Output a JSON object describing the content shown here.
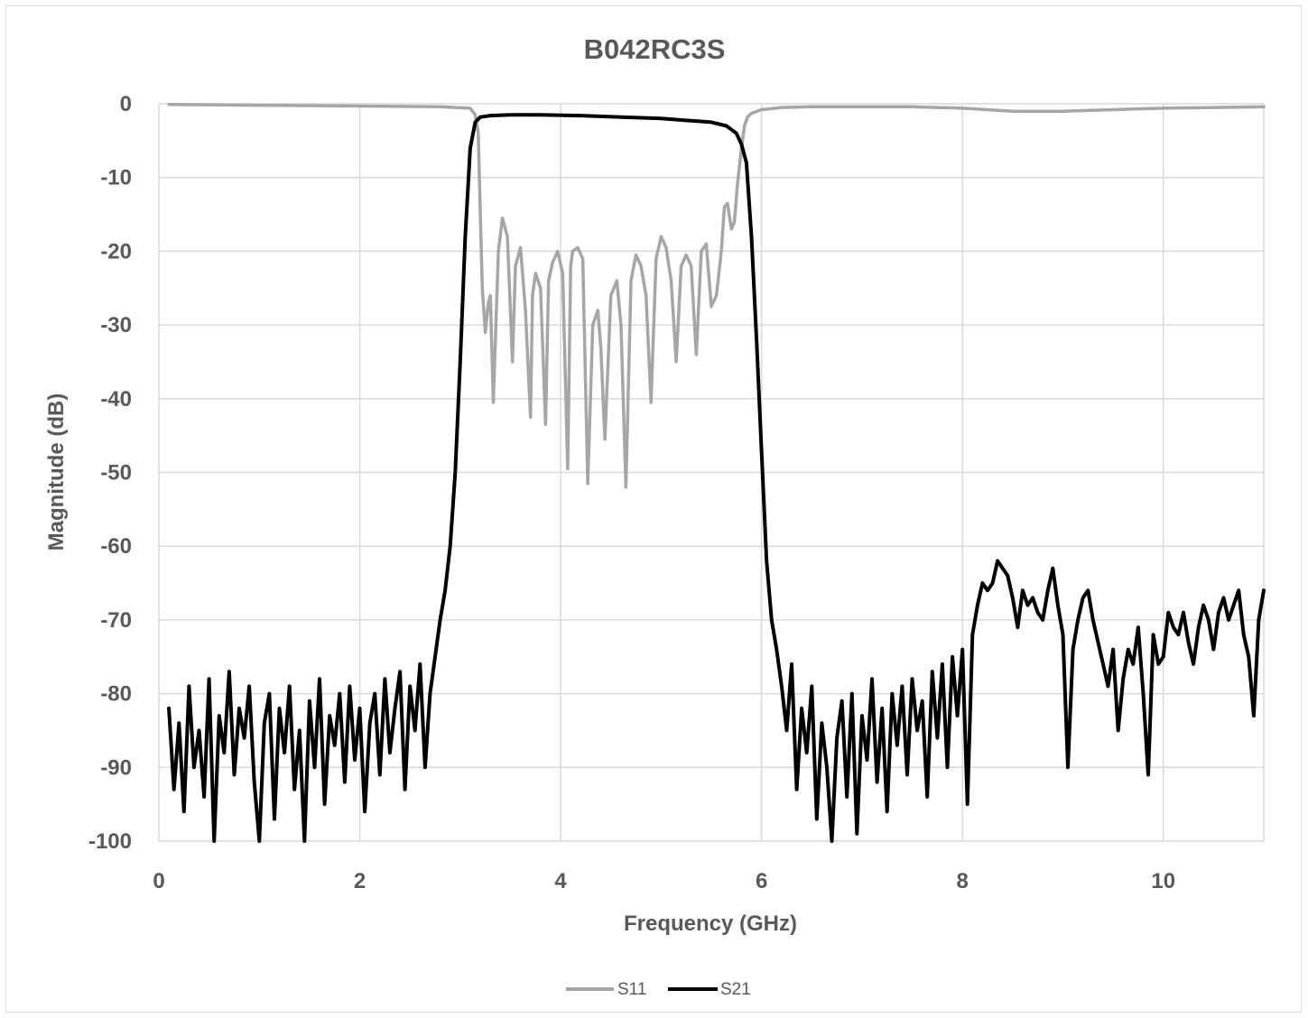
{
  "chart_data": {
    "type": "line",
    "title": "B042RC3S",
    "xlabel": "Frequency (GHz)",
    "ylabel": "Magnitude (dB)",
    "xlim": [
      0,
      11
    ],
    "ylim": [
      -100,
      0
    ],
    "xticks": [
      0,
      2,
      4,
      6,
      8,
      10
    ],
    "yticks": [
      0,
      -10,
      -20,
      -30,
      -40,
      -50,
      -60,
      -70,
      -80,
      -90,
      -100
    ],
    "grid": true,
    "legend": "bottom",
    "series": [
      {
        "name": "S11",
        "color": "#a6a6a6",
        "x": [
          0.1,
          1.0,
          2.0,
          2.8,
          3.1,
          3.15,
          3.18,
          3.2,
          3.22,
          3.25,
          3.28,
          3.3,
          3.33,
          3.38,
          3.42,
          3.47,
          3.52,
          3.55,
          3.6,
          3.65,
          3.7,
          3.72,
          3.75,
          3.8,
          3.85,
          3.88,
          3.92,
          3.97,
          4.02,
          4.07,
          4.1,
          4.12,
          4.17,
          4.22,
          4.27,
          4.32,
          4.37,
          4.4,
          4.44,
          4.5,
          4.56,
          4.6,
          4.65,
          4.7,
          4.75,
          4.8,
          4.85,
          4.9,
          4.95,
          5.0,
          5.05,
          5.1,
          5.15,
          5.2,
          5.25,
          5.3,
          5.35,
          5.4,
          5.45,
          5.5,
          5.55,
          5.6,
          5.63,
          5.66,
          5.7,
          5.73,
          5.76,
          5.8,
          5.83,
          5.86,
          5.9,
          6.0,
          6.2,
          6.5,
          7.0,
          7.5,
          8.0,
          8.5,
          9.0,
          9.5,
          10.0,
          10.5,
          11.0
        ],
        "y": [
          -0.1,
          -0.2,
          -0.3,
          -0.4,
          -0.6,
          -1.5,
          -4,
          -15,
          -25,
          -31,
          -27,
          -26,
          -40.5,
          -20,
          -15.5,
          -18,
          -35,
          -22,
          -19.5,
          -28,
          -42.5,
          -26,
          -23,
          -25,
          -43.5,
          -24,
          -21.5,
          -20,
          -23,
          -49.5,
          -22,
          -20,
          -19.5,
          -21,
          -51.5,
          -30,
          -28,
          -33,
          -45.5,
          -26,
          -24,
          -30,
          -52,
          -24,
          -20.5,
          -22,
          -26,
          -40.5,
          -21,
          -18,
          -19.5,
          -24,
          -35,
          -22,
          -20.5,
          -22,
          -34,
          -20,
          -19,
          -27.5,
          -26,
          -20,
          -14,
          -13.5,
          -17,
          -16,
          -11,
          -6,
          -3,
          -1.8,
          -1.3,
          -0.8,
          -0.5,
          -0.4,
          -0.4,
          -0.4,
          -0.6,
          -1.0,
          -1.0,
          -0.8,
          -0.6,
          -0.5,
          -0.4
        ]
      },
      {
        "name": "S21",
        "color": "#000000",
        "x": [
          0.1,
          0.15,
          0.2,
          0.25,
          0.3,
          0.35,
          0.4,
          0.45,
          0.5,
          0.55,
          0.6,
          0.65,
          0.7,
          0.75,
          0.8,
          0.85,
          0.9,
          0.95,
          1.0,
          1.05,
          1.1,
          1.15,
          1.2,
          1.25,
          1.3,
          1.35,
          1.4,
          1.45,
          1.5,
          1.55,
          1.6,
          1.65,
          1.7,
          1.75,
          1.8,
          1.85,
          1.9,
          1.95,
          2.0,
          2.05,
          2.1,
          2.15,
          2.2,
          2.25,
          2.3,
          2.35,
          2.4,
          2.45,
          2.5,
          2.55,
          2.6,
          2.65,
          2.7,
          2.75,
          2.8,
          2.85,
          2.9,
          2.95,
          3.0,
          3.05,
          3.1,
          3.15,
          3.2,
          3.3,
          3.5,
          3.8,
          4.2,
          4.6,
          5.0,
          5.3,
          5.5,
          5.65,
          5.75,
          5.8,
          5.85,
          5.9,
          5.95,
          6.0,
          6.05,
          6.1,
          6.15,
          6.2,
          6.25,
          6.3,
          6.35,
          6.4,
          6.45,
          6.5,
          6.55,
          6.6,
          6.65,
          6.7,
          6.75,
          6.8,
          6.85,
          6.9,
          6.95,
          7.0,
          7.05,
          7.1,
          7.15,
          7.2,
          7.25,
          7.3,
          7.35,
          7.4,
          7.45,
          7.5,
          7.55,
          7.6,
          7.65,
          7.7,
          7.75,
          7.8,
          7.85,
          7.9,
          7.95,
          8.0,
          8.05,
          8.1,
          8.15,
          8.2,
          8.25,
          8.3,
          8.35,
          8.4,
          8.45,
          8.5,
          8.55,
          8.6,
          8.65,
          8.7,
          8.75,
          8.8,
          8.85,
          8.9,
          8.95,
          9.0,
          9.05,
          9.1,
          9.15,
          9.2,
          9.25,
          9.3,
          9.35,
          9.4,
          9.45,
          9.5,
          9.55,
          9.6,
          9.65,
          9.7,
          9.75,
          9.8,
          9.85,
          9.9,
          9.95,
          10.0,
          10.05,
          10.1,
          10.15,
          10.2,
          10.25,
          10.3,
          10.35,
          10.4,
          10.45,
          10.5,
          10.55,
          10.6,
          10.65,
          10.7,
          10.75,
          10.8,
          10.85,
          10.9,
          10.95,
          11.0
        ],
        "y": [
          -82,
          -93,
          -84,
          -96,
          -79,
          -90,
          -85,
          -94,
          -78,
          -100,
          -83,
          -88,
          -77,
          -91,
          -82,
          -86,
          -79,
          -92,
          -100,
          -84,
          -80,
          -97,
          -82,
          -88,
          -79,
          -93,
          -85,
          -100,
          -81,
          -90,
          -78,
          -95,
          -83,
          -87,
          -80,
          -92,
          -79,
          -89,
          -82,
          -96,
          -84,
          -80,
          -91,
          -78,
          -88,
          -82,
          -77,
          -93,
          -79,
          -85,
          -76,
          -90,
          -80,
          -75,
          -70,
          -66,
          -60,
          -50,
          -35,
          -18,
          -6,
          -2.5,
          -1.8,
          -1.6,
          -1.5,
          -1.5,
          -1.6,
          -1.8,
          -2.0,
          -2.3,
          -2.5,
          -3.0,
          -4.0,
          -5.5,
          -8,
          -18,
          -32,
          -47,
          -62,
          -70,
          -74,
          -79,
          -85,
          -76,
          -93,
          -82,
          -88,
          -79,
          -97,
          -84,
          -90,
          -100,
          -86,
          -81,
          -94,
          -80,
          -99,
          -83,
          -89,
          -78,
          -92,
          -82,
          -96,
          -80,
          -87,
          -79,
          -91,
          -78,
          -85,
          -81,
          -94,
          -77,
          -86,
          -76,
          -90,
          -75,
          -83,
          -74,
          -95,
          -72,
          -68,
          -65,
          -66,
          -65,
          -62,
          -63,
          -64,
          -67,
          -71,
          -66,
          -68,
          -67,
          -69,
          -70,
          -66,
          -63,
          -68,
          -72,
          -90,
          -74,
          -70,
          -67,
          -66,
          -70,
          -73,
          -76,
          -79,
          -74,
          -85,
          -78,
          -74,
          -76,
          -71,
          -80,
          -91,
          -72,
          -76,
          -75,
          -69,
          -71,
          -72,
          -69,
          -73,
          -76,
          -71,
          -68,
          -70,
          -74,
          -69,
          -67,
          -70,
          -68,
          -66,
          -72,
          -75,
          -83,
          -70,
          -66
        ]
      }
    ]
  }
}
